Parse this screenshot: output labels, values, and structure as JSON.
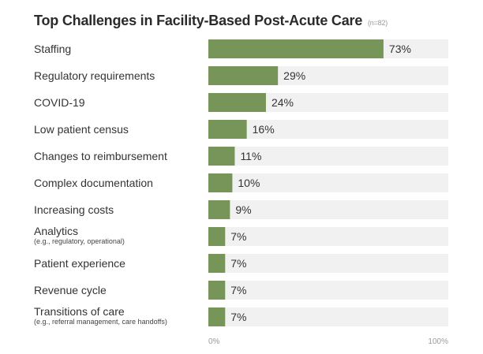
{
  "title": "Top Challenges in Facility-Based Post-Acute Care",
  "sample_note": "(n=82)",
  "chart_data": {
    "type": "bar",
    "orientation": "horizontal",
    "title": "Top Challenges in Facility-Based Post-Acute Care",
    "categories": [
      "Staffing",
      "Regulatory requirements",
      "COVID-19",
      "Low patient census",
      "Changes to reimbursement",
      "Complex documentation",
      "Increasing costs",
      "Analytics",
      "Patient experience",
      "Revenue cycle",
      "Transitions of care"
    ],
    "sublabels": [
      "",
      "",
      "",
      "",
      "",
      "",
      "",
      "(e.g., regulatory, operational)",
      "",
      "",
      "(e.g., referral management, care handoffs)"
    ],
    "values": [
      73,
      29,
      24,
      16,
      11,
      10,
      9,
      7,
      7,
      7,
      7
    ],
    "value_labels": [
      "73%",
      "29%",
      "24%",
      "16%",
      "11%",
      "10%",
      "9%",
      "7%",
      "7%",
      "7%",
      "7%"
    ],
    "xlim": [
      0,
      100
    ],
    "tick_labels": [
      "0%",
      "100%"
    ],
    "colors": {
      "bar": "#779459",
      "track": "#f1f1f1"
    }
  }
}
